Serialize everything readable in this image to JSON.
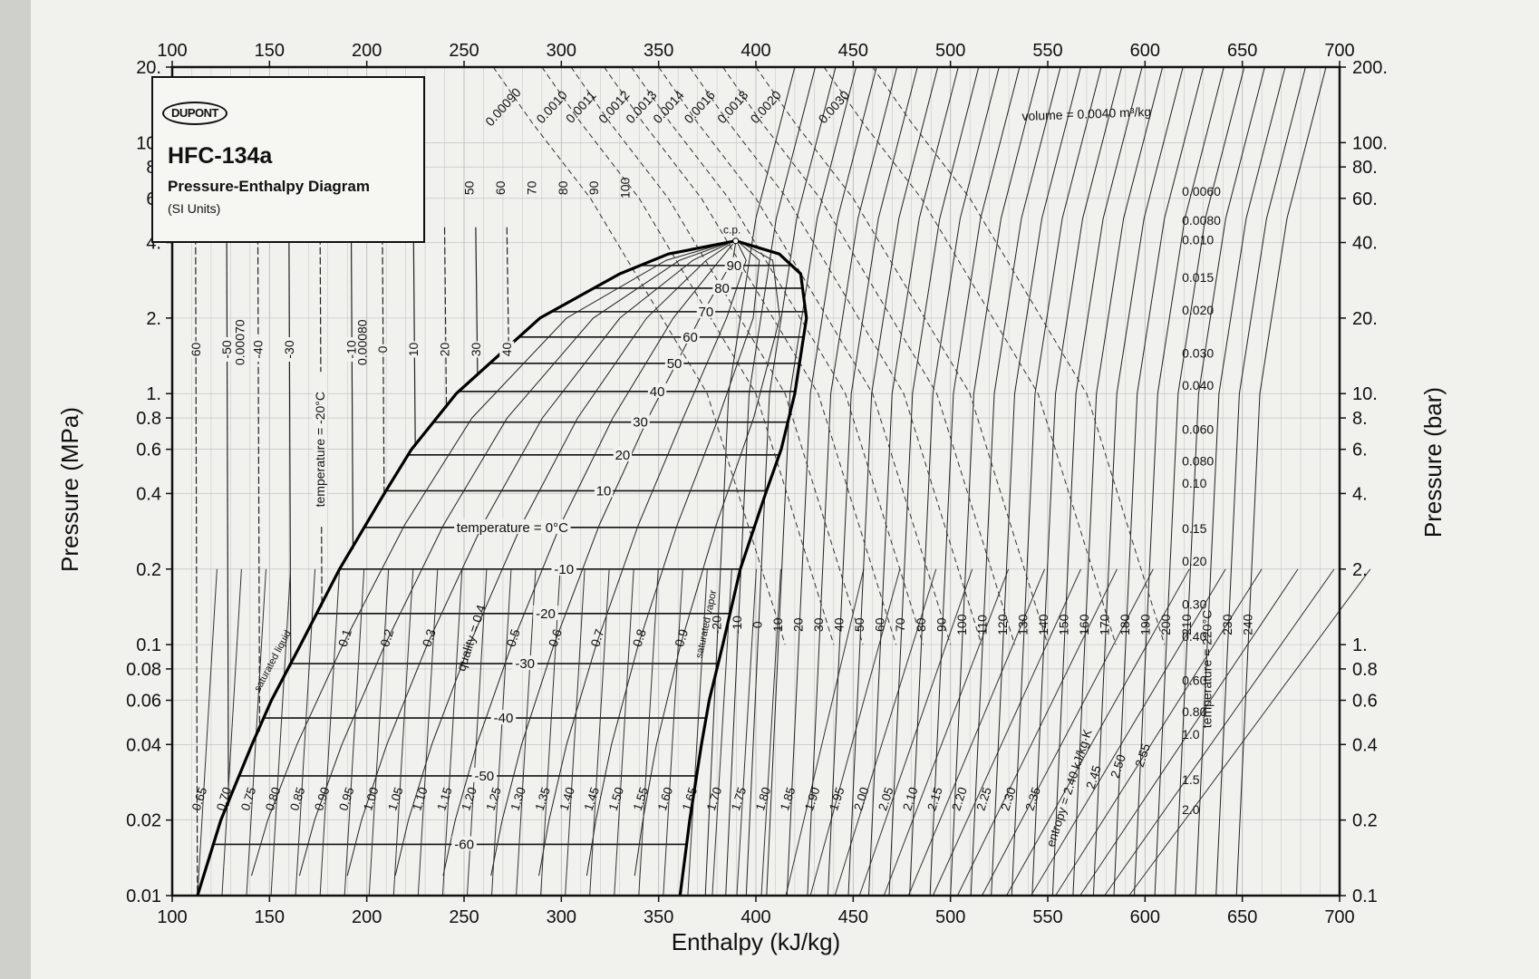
{
  "chart_data": {
    "type": "line",
    "title": "HFC-134a",
    "subtitle": "Pressure-Enthalpy Diagram",
    "units_note": "(SI Units)",
    "brand": "DUPONT",
    "xlabel": "Enthalpy (kJ/kg)",
    "ylabel_left": "Pressure (MPa)",
    "ylabel_right": "Pressure (bar)",
    "xlim": [
      100,
      700
    ],
    "ylim": [
      0.01,
      20
    ],
    "y_scale": "log",
    "grid": true,
    "x_ticks": [
      "100",
      "150",
      "200",
      "250",
      "300",
      "350",
      "400",
      "450",
      "500",
      "550",
      "600",
      "650",
      "700"
    ],
    "y_ticks_left": [
      {
        "v": 20,
        "label": "20."
      },
      {
        "v": 10,
        "label": "10."
      },
      {
        "v": 8,
        "label": "8."
      },
      {
        "v": 6,
        "label": "6."
      },
      {
        "v": 4,
        "label": "4."
      },
      {
        "v": 2,
        "label": "2."
      },
      {
        "v": 1,
        "label": "1."
      },
      {
        "v": 0.8,
        "label": "0.8"
      },
      {
        "v": 0.6,
        "label": "0.6"
      },
      {
        "v": 0.4,
        "label": "0.4"
      },
      {
        "v": 0.2,
        "label": "0.2"
      },
      {
        "v": 0.1,
        "label": "0.1"
      },
      {
        "v": 0.08,
        "label": "0.08"
      },
      {
        "v": 0.06,
        "label": "0.06"
      },
      {
        "v": 0.04,
        "label": "0.04"
      },
      {
        "v": 0.02,
        "label": "0.02"
      },
      {
        "v": 0.01,
        "label": "0.01"
      }
    ],
    "y_ticks_right": [
      {
        "v": 20,
        "label": "200."
      },
      {
        "v": 10,
        "label": "100."
      },
      {
        "v": 8,
        "label": "80."
      },
      {
        "v": 6,
        "label": "60."
      },
      {
        "v": 4,
        "label": "40."
      },
      {
        "v": 2,
        "label": "20."
      },
      {
        "v": 1,
        "label": "10."
      },
      {
        "v": 0.8,
        "label": "8."
      },
      {
        "v": 0.6,
        "label": "6."
      },
      {
        "v": 0.4,
        "label": "4."
      },
      {
        "v": 0.2,
        "label": "2."
      },
      {
        "v": 0.1,
        "label": "1."
      },
      {
        "v": 0.08,
        "label": "0.8"
      },
      {
        "v": 0.06,
        "label": "0.6"
      },
      {
        "v": 0.04,
        "label": "0.4"
      },
      {
        "v": 0.02,
        "label": "0.2"
      },
      {
        "v": 0.01,
        "label": "0.1"
      }
    ],
    "saturation_dome": {
      "critical_point": {
        "h": 389.6,
        "p": 4.06,
        "label": "c.p."
      },
      "saturated_liquid": [
        {
          "p": 0.01,
          "h": 113
        },
        {
          "p": 0.02,
          "h": 125
        },
        {
          "p": 0.04,
          "h": 141
        },
        {
          "p": 0.06,
          "h": 151
        },
        {
          "p": 0.1,
          "h": 166
        },
        {
          "p": 0.2,
          "h": 186
        },
        {
          "p": 0.4,
          "h": 209
        },
        {
          "p": 0.6,
          "h": 223
        },
        {
          "p": 1.0,
          "h": 246
        },
        {
          "p": 2.0,
          "h": 289
        },
        {
          "p": 3.0,
          "h": 330
        },
        {
          "p": 3.6,
          "h": 355
        },
        {
          "p": 4.06,
          "h": 389.6
        }
      ],
      "saturated_vapor": [
        {
          "p": 4.06,
          "h": 389.6
        },
        {
          "p": 3.6,
          "h": 412
        },
        {
          "p": 3.0,
          "h": 423
        },
        {
          "p": 2.0,
          "h": 426
        },
        {
          "p": 1.0,
          "h": 420
        },
        {
          "p": 0.6,
          "h": 413
        },
        {
          "p": 0.4,
          "h": 405
        },
        {
          "p": 0.2,
          "h": 392
        },
        {
          "p": 0.1,
          "h": 383
        },
        {
          "p": 0.06,
          "h": 376
        },
        {
          "p": 0.04,
          "h": 372
        },
        {
          "p": 0.02,
          "h": 366
        },
        {
          "p": 0.01,
          "h": 361
        }
      ],
      "labels": {
        "liquid": "saturated liquid",
        "vapor": "saturated vapor"
      }
    },
    "isotherms_in_dome": [
      {
        "label": "90",
        "p": 3.24
      },
      {
        "label": "80",
        "p": 2.63
      },
      {
        "label": "70",
        "p": 2.12
      },
      {
        "label": "60",
        "p": 1.68
      },
      {
        "label": "50",
        "p": 1.32
      },
      {
        "label": "40",
        "p": 1.02
      },
      {
        "label": "30",
        "p": 0.77
      },
      {
        "label": "20",
        "p": 0.57
      },
      {
        "label": "10",
        "p": 0.41
      },
      {
        "label": "temperature = 0°C",
        "p": 0.293
      },
      {
        "label": "-10",
        "p": 0.2
      },
      {
        "label": "-20",
        "p": 0.133
      },
      {
        "label": "-30",
        "p": 0.084
      },
      {
        "label": "-40",
        "p": 0.051
      },
      {
        "label": "-50",
        "p": 0.03
      },
      {
        "label": "-60",
        "p": 0.016
      }
    ],
    "quality_lines": [
      "0.1",
      "0.2",
      "0.3",
      "quality = 0.4",
      "0.5",
      "0.6",
      "0.7",
      "0.8",
      "0.9"
    ],
    "liquid_temperature_labels": [
      "60",
      "-50",
      "-40",
      "-30",
      "temperature = -20°C",
      "-10",
      "0",
      "10",
      "20",
      "30",
      "40"
    ],
    "top_density_labels": [
      "50",
      "60",
      "70",
      "80",
      "90",
      "100"
    ],
    "liquid_volume_labels": [
      "0.00070",
      "0.00080"
    ],
    "vapor_temperature_labels": [
      "-20",
      "-10",
      "0",
      "10",
      "20",
      "30",
      "40",
      "50",
      "60",
      "70",
      "80",
      "90",
      "100",
      "110",
      "120",
      "130",
      "140",
      "150",
      "160",
      "170",
      "180",
      "190",
      "200",
      "210",
      "temperature = 220°C",
      "230",
      "240"
    ],
    "entropy_labels": [
      "0.65",
      "0.70",
      "0.75",
      "0.80",
      "0.85",
      "0.90",
      "0.95",
      "1.00",
      "1.05",
      "1.10",
      "1.15",
      "1.20",
      "1.25",
      "1.30",
      "1.35",
      "1.40",
      "1.45",
      "1.50",
      "1.55",
      "1.60",
      "1.65",
      "1.70",
      "1.75",
      "1.80",
      "1.85",
      "1.90",
      "1.95",
      "2.00",
      "2.05",
      "2.10",
      "2.15",
      "2.20",
      "2.25",
      "2.30",
      "2.35",
      "entropy = 2.40 kJ/kg·K",
      "2.45",
      "2.50",
      "2.55"
    ],
    "volume_labels_top": [
      "0.00090",
      "0.0010",
      "0.0011",
      "0.0012",
      "0.0013",
      "0.0014",
      "0.0016",
      "0.0018",
      "0.0020",
      "0.0030",
      "volume = 0.0040 m³/kg"
    ],
    "volume_labels_right": [
      "0.0060",
      "0.0080",
      "0.010",
      "0.015",
      "0.020",
      "0.030",
      "0.040",
      "0.060",
      "0.080",
      "0.10",
      "0.15",
      "0.20",
      "0.30",
      "0.40",
      "0.60",
      "0.80",
      "1.0",
      "1.5",
      "2.0"
    ],
    "volume_right_positions": [
      {
        "label": "0.0060",
        "p": 6.4
      },
      {
        "label": "0.0080",
        "p": 4.9
      },
      {
        "label": "0.010",
        "p": 4.1
      },
      {
        "label": "0.015",
        "p": 2.9
      },
      {
        "label": "0.020",
        "p": 2.15
      },
      {
        "label": "0.030",
        "p": 1.45
      },
      {
        "label": "0.040",
        "p": 1.08
      },
      {
        "label": "0.060",
        "p": 0.72
      },
      {
        "label": "0.080",
        "p": 0.54
      },
      {
        "label": "0.10",
        "p": 0.44
      },
      {
        "label": "0.15",
        "p": 0.29
      },
      {
        "label": "0.20",
        "p": 0.215
      },
      {
        "label": "0.30",
        "p": 0.145
      },
      {
        "label": "0.40",
        "p": 0.108
      },
      {
        "label": "0.60",
        "p": 0.072
      },
      {
        "label": "0.80",
        "p": 0.054
      },
      {
        "label": "1.0",
        "p": 0.044
      },
      {
        "label": "1.5",
        "p": 0.029
      },
      {
        "label": "2.0",
        "p": 0.022
      }
    ]
  }
}
